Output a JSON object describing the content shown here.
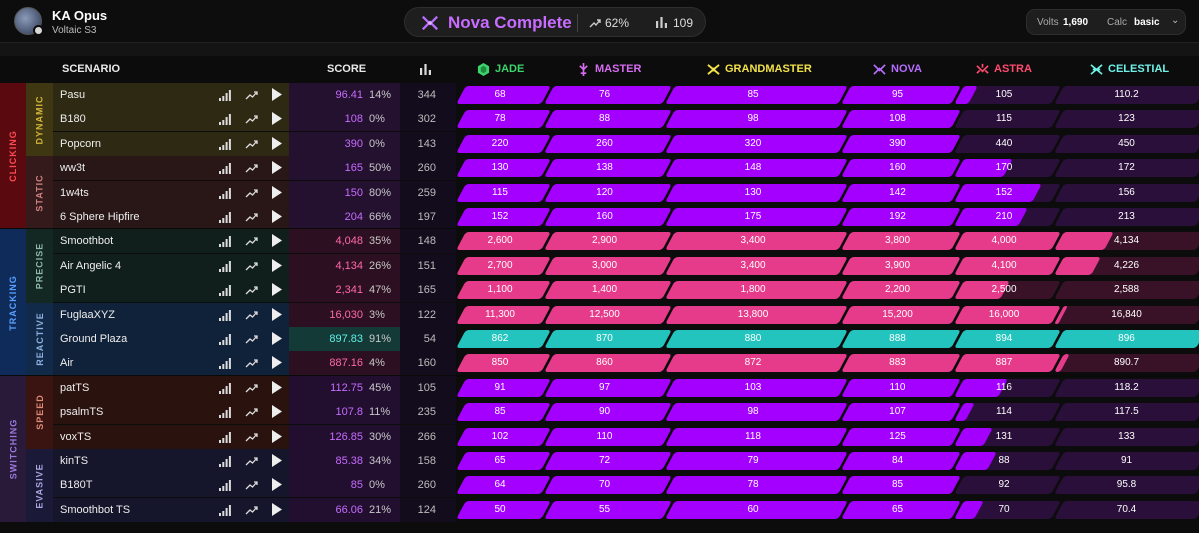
{
  "header": {
    "user_name": "KA Opus",
    "user_sub": "Voltaic S3",
    "rank_name": "Nova Complete",
    "rank_pct": "62%",
    "rank_count": "109",
    "volts_label": "Volts",
    "volts_value": "1,690",
    "calc_label": "Calc",
    "calc_value": "basic"
  },
  "columns": {
    "scenario": "SCENARIO",
    "score": "SCORE",
    "ranks": [
      "JADE",
      "MASTER",
      "GRANDMASTER",
      "NOVA",
      "ASTRA",
      "CELESTIAL"
    ]
  },
  "colors": {
    "jade": "#3ed46c",
    "master": "#d66cf0",
    "grandmaster": "#f2e24a",
    "nova": "#b66cff",
    "astra": "#ff4b6e",
    "celestial": "#6ef2e8",
    "clicking_fill": "#a400ff",
    "tracking_fill": "#e63b8a",
    "reactive_fill": "#23c4bd"
  },
  "categories": [
    {
      "label": "CLICKING",
      "subs": [
        {
          "label": "DYNAMIC",
          "scenarios": [
            {
              "name": "Pasu",
              "score": "96.41",
              "pct": "14%",
              "count": "344",
              "thresholds": [
                "68",
                "76",
                "85",
                "95",
                "105",
                "110.2"
              ],
              "progress": 4.14
            },
            {
              "name": "B180",
              "score": "108",
              "pct": "0%",
              "count": "302",
              "thresholds": [
                "78",
                "88",
                "98",
                "108",
                "115",
                "123"
              ],
              "progress": 4.0
            },
            {
              "name": "Popcorn",
              "score": "390",
              "pct": "0%",
              "count": "143",
              "thresholds": [
                "220",
                "260",
                "320",
                "390",
                "440",
                "450"
              ],
              "progress": 4.0
            }
          ]
        },
        {
          "label": "STATIC",
          "scenarios": [
            {
              "name": "ww3t",
              "score": "165",
              "pct": "50%",
              "count": "260",
              "thresholds": [
                "130",
                "138",
                "148",
                "160",
                "170",
                "172"
              ],
              "progress": 4.5
            },
            {
              "name": "1w4ts",
              "score": "150",
              "pct": "80%",
              "count": "259",
              "thresholds": [
                "115",
                "120",
                "130",
                "142",
                "152",
                "156"
              ],
              "progress": 4.8
            },
            {
              "name": "6 Sphere Hipfire",
              "score": "204",
              "pct": "66%",
              "count": "197",
              "thresholds": [
                "152",
                "160",
                "175",
                "192",
                "210",
                "213"
              ],
              "progress": 4.66
            }
          ]
        }
      ]
    },
    {
      "label": "TRACKING",
      "subs": [
        {
          "label": "PRECISE",
          "scenarios": [
            {
              "name": "Smoothbot",
              "score": "4,048",
              "pct": "35%",
              "count": "148",
              "thresholds": [
                "2,600",
                "2,900",
                "3,400",
                "3,800",
                "4,000",
                "4,134"
              ],
              "progress": 5.35
            },
            {
              "name": "Air Angelic 4",
              "score": "4,134",
              "pct": "26%",
              "count": "151",
              "thresholds": [
                "2,700",
                "3,000",
                "3,400",
                "3,900",
                "4,100",
                "4,226"
              ],
              "progress": 5.26
            },
            {
              "name": "PGTI",
              "score": "2,341",
              "pct": "47%",
              "count": "165",
              "thresholds": [
                "1,100",
                "1,400",
                "1,800",
                "2,200",
                "2,500",
                "2,588"
              ],
              "progress": 4.47
            }
          ]
        },
        {
          "label": "REACTIVE",
          "scenarios": [
            {
              "name": "FuglaaXYZ",
              "score": "16,030",
              "pct": "3%",
              "count": "122",
              "thresholds": [
                "11,300",
                "12,500",
                "13,800",
                "15,200",
                "16,000",
                "16,840"
              ],
              "progress": 5.03
            },
            {
              "name": "Ground Plaza",
              "score": "897.83",
              "pct": "91%",
              "count": "54",
              "thresholds": [
                "862",
                "870",
                "880",
                "888",
                "894",
                "896"
              ],
              "progress": 6.0
            },
            {
              "name": "Air",
              "score": "887.16",
              "pct": "4%",
              "count": "160",
              "thresholds": [
                "850",
                "860",
                "872",
                "883",
                "887",
                "890.7"
              ],
              "progress": 5.04
            }
          ]
        }
      ]
    },
    {
      "label": "SWITCHING",
      "subs": [
        {
          "label": "SPEED",
          "scenarios": [
            {
              "name": "patTS",
              "score": "112.75",
              "pct": "45%",
              "count": "105",
              "thresholds": [
                "91",
                "97",
                "103",
                "110",
                "116",
                "118.2"
              ],
              "progress": 4.45
            },
            {
              "name": "psalmTS",
              "score": "107.8",
              "pct": "11%",
              "count": "235",
              "thresholds": [
                "85",
                "90",
                "98",
                "107",
                "114",
                "117.5"
              ],
              "progress": 4.11
            },
            {
              "name": "voxTS",
              "score": "126.85",
              "pct": "30%",
              "count": "266",
              "thresholds": [
                "102",
                "110",
                "118",
                "125",
                "131",
                "133"
              ],
              "progress": 4.3
            }
          ]
        },
        {
          "label": "EVASIVE",
          "scenarios": [
            {
              "name": "kinTS",
              "score": "85.38",
              "pct": "34%",
              "count": "158",
              "thresholds": [
                "65",
                "72",
                "79",
                "84",
                "88",
                "91"
              ],
              "progress": 4.34
            },
            {
              "name": "B180T",
              "score": "85",
              "pct": "0%",
              "count": "260",
              "thresholds": [
                "64",
                "70",
                "78",
                "85",
                "92",
                "95.8"
              ],
              "progress": 4.0
            },
            {
              "name": "Smoothbot TS",
              "score": "66.06",
              "pct": "21%",
              "count": "124",
              "thresholds": [
                "50",
                "55",
                "60",
                "65",
                "70",
                "70.4"
              ],
              "progress": 4.21
            }
          ]
        }
      ]
    }
  ]
}
